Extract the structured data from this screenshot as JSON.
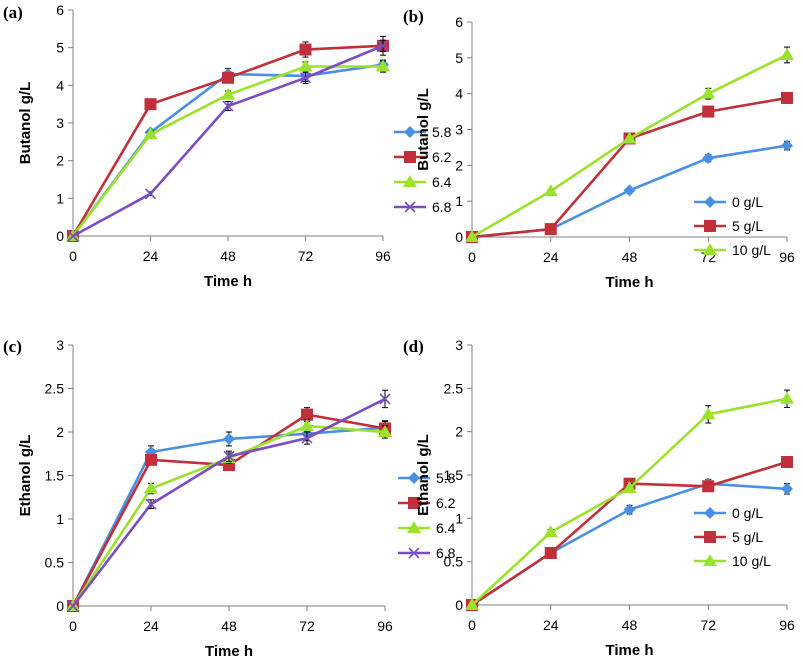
{
  "colors": {
    "blue": "#4A90E2",
    "red": "#C0303B",
    "green": "#9BE22C",
    "purple": "#7B4CC4",
    "axis": "#808080",
    "errorbar": "#000000"
  },
  "chart_data": [
    {
      "id": "a",
      "label": "(a)",
      "type": "line",
      "x": [
        0,
        24,
        48,
        72,
        96
      ],
      "xlim": [
        0,
        96
      ],
      "x_ticks": [
        "0",
        "24",
        "48",
        "72",
        "96"
      ],
      "ylim": [
        0,
        6
      ],
      "y_ticks": [
        "0",
        "1",
        "2",
        "3",
        "4",
        "5",
        "6"
      ],
      "xlabel": "Time h",
      "ylabel": "Butanol g/L",
      "legend_position": "right-middle",
      "series": [
        {
          "name": "5.8",
          "color": "blue",
          "marker": "diamond",
          "values": [
            0,
            2.75,
            4.3,
            4.25,
            4.55
          ],
          "errors": [
            0,
            0.08,
            0.15,
            0.15,
            0.12
          ]
        },
        {
          "name": "6.2",
          "color": "red",
          "marker": "square",
          "values": [
            0,
            3.5,
            4.2,
            4.95,
            5.05
          ],
          "errors": [
            0,
            0.1,
            0.12,
            0.2,
            0.25
          ]
        },
        {
          "name": "6.4",
          "color": "green",
          "marker": "triangle",
          "values": [
            0,
            2.7,
            3.75,
            4.5,
            4.5
          ],
          "errors": [
            0,
            0.08,
            0.1,
            0.12,
            0.15
          ]
        },
        {
          "name": "6.8",
          "color": "purple",
          "marker": "x",
          "values": [
            0,
            1.12,
            3.45,
            4.2,
            5.05
          ],
          "errors": [
            0,
            0.05,
            0.12,
            0.15,
            0.15
          ]
        }
      ]
    },
    {
      "id": "b",
      "label": "(b)",
      "type": "line",
      "x": [
        0,
        24,
        48,
        72,
        96
      ],
      "xlim": [
        0,
        96
      ],
      "x_ticks": [
        "0",
        "24",
        "48",
        "72",
        "96"
      ],
      "ylim": [
        0,
        6
      ],
      "y_ticks": [
        "0",
        "1",
        "2",
        "3",
        "4",
        "5",
        "6"
      ],
      "xlabel": "Time h",
      "ylabel": "Butanol g/L",
      "legend_position": "bottom-right",
      "series": [
        {
          "name": "0 g/L",
          "color": "blue",
          "marker": "diamond",
          "values": [
            0,
            0.22,
            1.3,
            2.2,
            2.55
          ],
          "errors": [
            0,
            0.03,
            0.05,
            0.1,
            0.12
          ]
        },
        {
          "name": "5 g/L",
          "color": "red",
          "marker": "square",
          "values": [
            0,
            0.22,
            2.75,
            3.5,
            3.88
          ],
          "errors": [
            0,
            0.03,
            0.08,
            0.12,
            0.15
          ]
        },
        {
          "name": "10 g/L",
          "color": "green",
          "marker": "triangle",
          "values": [
            0,
            1.28,
            2.75,
            4.0,
            5.08
          ],
          "errors": [
            0,
            0.05,
            0.1,
            0.15,
            0.22
          ]
        }
      ]
    },
    {
      "id": "c",
      "label": "(c)",
      "type": "line",
      "x": [
        0,
        24,
        48,
        72,
        96
      ],
      "xlim": [
        0,
        96
      ],
      "x_ticks": [
        "0",
        "24",
        "48",
        "72",
        "96"
      ],
      "ylim": [
        0,
        3
      ],
      "y_ticks": [
        "0",
        "0.5",
        "1",
        "1.5",
        "2",
        "2.5",
        "3"
      ],
      "xlabel": "Time h",
      "ylabel": "Ethanol g/L",
      "legend_position": "right-middle",
      "series": [
        {
          "name": "5.8",
          "color": "blue",
          "marker": "diamond",
          "values": [
            0,
            1.77,
            1.92,
            1.98,
            2.05
          ],
          "errors": [
            0,
            0.07,
            0.08,
            0.08,
            0.08
          ]
        },
        {
          "name": "6.2",
          "color": "red",
          "marker": "square",
          "values": [
            0,
            1.68,
            1.62,
            2.2,
            2.04
          ],
          "errors": [
            0,
            0.05,
            0.05,
            0.08,
            0.08
          ]
        },
        {
          "name": "6.4",
          "color": "green",
          "marker": "triangle",
          "values": [
            0,
            1.35,
            1.7,
            2.07,
            2.0
          ],
          "errors": [
            0,
            0.06,
            0.06,
            0.07,
            0.07
          ]
        },
        {
          "name": "6.8",
          "color": "purple",
          "marker": "x",
          "values": [
            0,
            1.17,
            1.72,
            1.93,
            2.38
          ],
          "errors": [
            0,
            0.05,
            0.06,
            0.07,
            0.1
          ]
        }
      ]
    },
    {
      "id": "d",
      "label": "(d)",
      "type": "line",
      "x": [
        0,
        24,
        48,
        72,
        96
      ],
      "xlim": [
        0,
        96
      ],
      "x_ticks": [
        "0",
        "24",
        "48",
        "72",
        "96"
      ],
      "ylim": [
        0,
        3
      ],
      "y_ticks": [
        "0",
        "0.5",
        "1",
        "1.5",
        "2",
        "2.5",
        "3"
      ],
      "xlabel": "Time h",
      "ylabel": "Ethanol g/L",
      "legend_position": "bottom-right",
      "series": [
        {
          "name": "0 g/L",
          "color": "blue",
          "marker": "diamond",
          "values": [
            0,
            0.6,
            1.1,
            1.4,
            1.34
          ],
          "errors": [
            0,
            0.03,
            0.05,
            0.05,
            0.06
          ]
        },
        {
          "name": "5 g/L",
          "color": "red",
          "marker": "square",
          "values": [
            0,
            0.6,
            1.4,
            1.37,
            1.65
          ],
          "errors": [
            0,
            0.03,
            0.05,
            0.05,
            0.05
          ]
        },
        {
          "name": "10 g/L",
          "color": "green",
          "marker": "triangle",
          "values": [
            0,
            0.84,
            1.35,
            2.2,
            2.38
          ],
          "errors": [
            0,
            0.03,
            0.05,
            0.1,
            0.1
          ]
        }
      ]
    }
  ]
}
